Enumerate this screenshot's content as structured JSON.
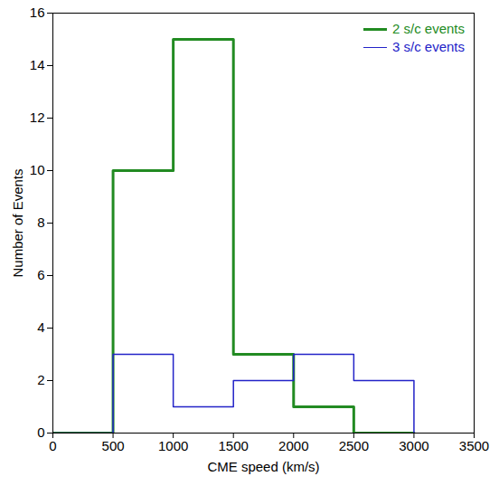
{
  "chart_data": {
    "type": "histogram",
    "x_label": "CME speed (km/s)",
    "y_label": "Number of Events",
    "bins": [
      0,
      500,
      1000,
      1500,
      2000,
      2500,
      3000
    ],
    "series": [
      {
        "name": "2 s/c events",
        "color": "#228b22",
        "values": [
          0,
          10,
          15,
          3,
          1,
          0
        ]
      },
      {
        "name": "3 s/c events",
        "color": "#2323c8",
        "values": [
          0,
          3,
          1,
          2,
          3,
          2
        ]
      }
    ],
    "xlim": [
      0,
      3500
    ],
    "xticks": [
      0,
      500,
      1000,
      1500,
      2000,
      2500,
      3000,
      3500
    ],
    "ylim": [
      0,
      16
    ],
    "yticks": [
      0,
      2,
      4,
      6,
      8,
      10,
      12,
      14,
      16
    ],
    "legend": "top-right"
  }
}
